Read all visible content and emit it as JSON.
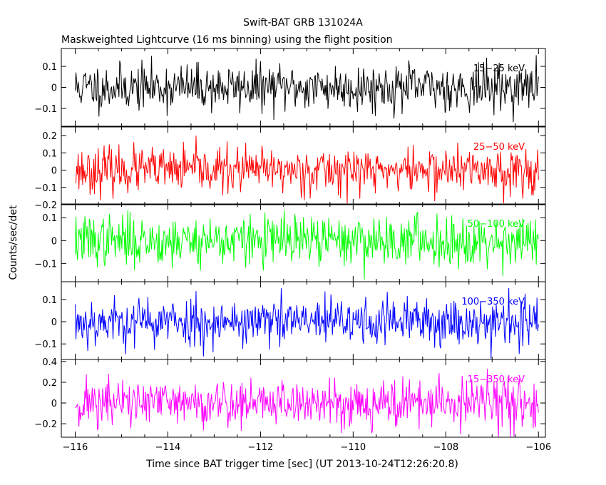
{
  "chart_data": {
    "type": "line",
    "title": "Swift-BAT GRB 131024A",
    "subtitle": "Maskweighted Lightcurve (16 ms binning) using the flight position",
    "xlabel": "Time since BAT trigger time [sec] (UT 2013-10-24T12:26:20.8)",
    "ylabel": "Counts/sec/det",
    "xlim": [
      -116.3,
      -105.85
    ],
    "x_ticks": [
      -116,
      -114,
      -112,
      -110,
      -108,
      -106
    ],
    "x_tick_labels": [
      "−116",
      "−114",
      "−112",
      "−110",
      "−108",
      "−106"
    ],
    "bin_seconds": 0.016,
    "panels": [
      {
        "name": "15-25 keV",
        "label": "15−25 keV",
        "color": "#000000",
        "ylim": [
          -0.185,
          0.185
        ],
        "y_ticks": [
          0.1,
          0,
          -0.1
        ],
        "y_tick_labels": [
          "0.1",
          "0",
          "−0.1"
        ],
        "noise_amplitude": 0.055,
        "seed": 11
      },
      {
        "name": "25-50 keV",
        "label": "25−50 keV",
        "color": "#ff0000",
        "ylim": [
          -0.2,
          0.25
        ],
        "y_ticks": [
          0.2,
          0.1,
          0,
          -0.1,
          -0.2
        ],
        "y_tick_labels": [
          "0.2",
          "0.1",
          "0",
          "−0.1",
          "−0.2"
        ],
        "noise_amplitude": 0.065,
        "seed": 23
      },
      {
        "name": "50-100 keV",
        "label": "50−100 keV",
        "color": "#00ff00",
        "ylim": [
          -0.18,
          0.16
        ],
        "y_ticks": [
          0.1,
          0,
          -0.1
        ],
        "y_tick_labels": [
          "0.1",
          "0",
          "−0.1"
        ],
        "noise_amplitude": 0.055,
        "seed": 37
      },
      {
        "name": "100-350 keV",
        "label": "100−350 keV",
        "color": "#0000ff",
        "ylim": [
          -0.17,
          0.18
        ],
        "y_ticks": [
          0.1,
          0,
          -0.1
        ],
        "y_tick_labels": [
          "0.1",
          "0",
          "−0.1"
        ],
        "noise_amplitude": 0.055,
        "seed": 53
      },
      {
        "name": "15-350 keV",
        "label": "15−350 keV",
        "color": "#ff00ff",
        "ylim": [
          -0.33,
          0.42
        ],
        "y_ticks": [
          0.4,
          0.2,
          0,
          -0.2
        ],
        "y_tick_labels": [
          "0.4",
          "0.2",
          "0",
          "−0.2"
        ],
        "noise_amplitude": 0.12,
        "seed": 71
      }
    ]
  }
}
